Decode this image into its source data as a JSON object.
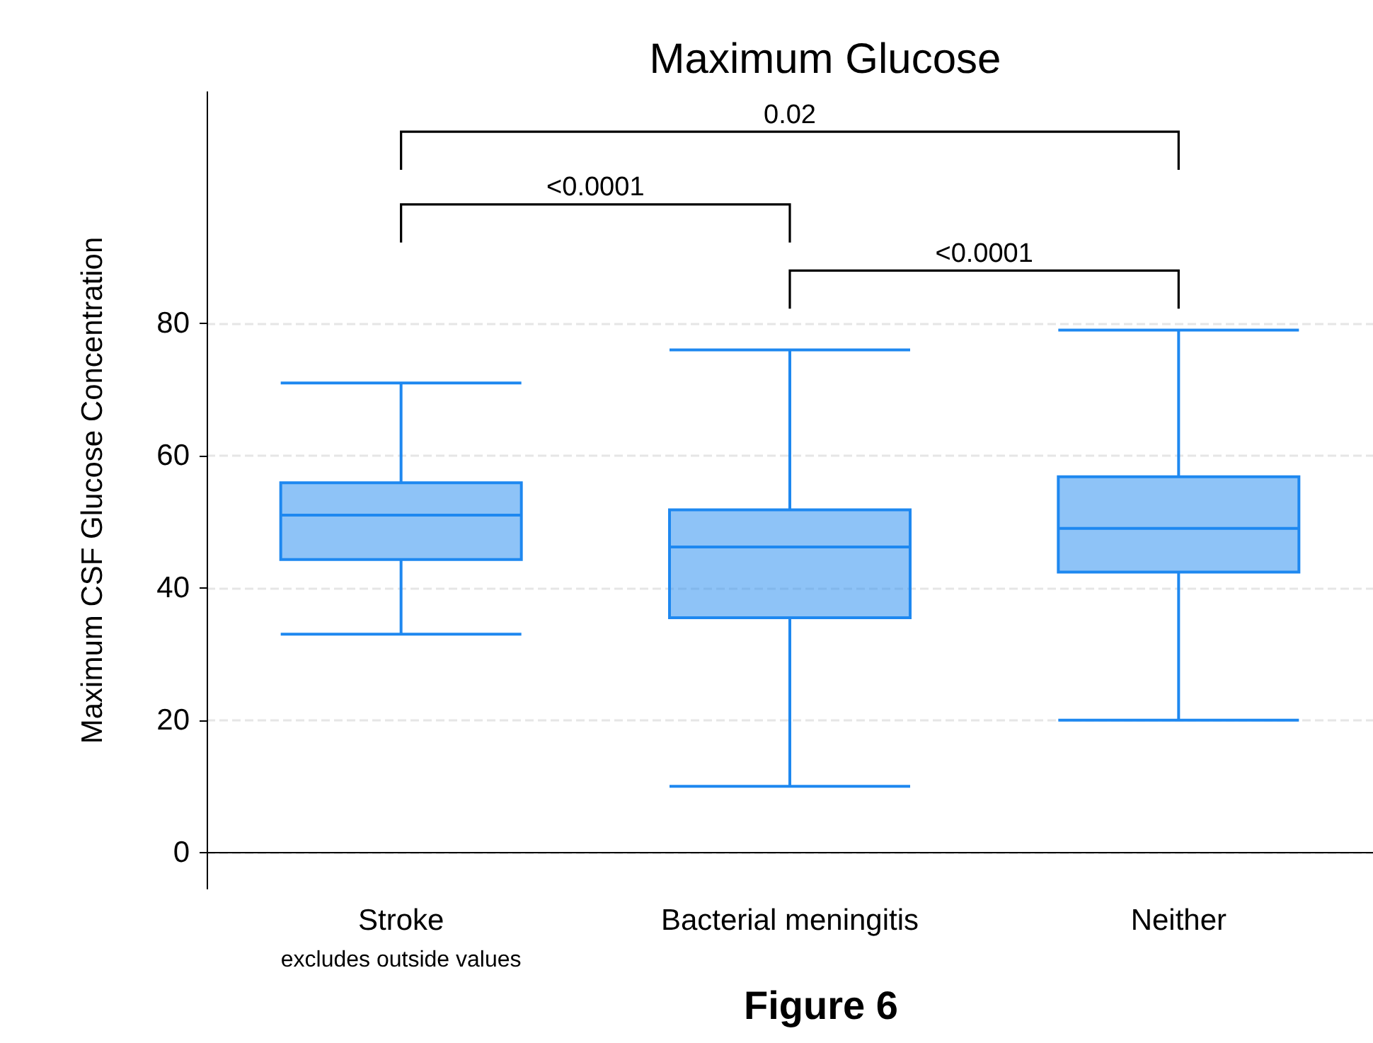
{
  "chart_data": {
    "type": "box",
    "title": "Maximum Glucose",
    "ylabel": "Maximum CSF Glucose Concentration",
    "categories": [
      "Stroke",
      "Bacterial meningitis",
      "Neither"
    ],
    "color": "#1e88f0",
    "boxes": [
      {
        "low": 33,
        "q1": 44.3,
        "median": 51,
        "q3": 55.9,
        "high": 71
      },
      {
        "low": 10,
        "q1": 35.5,
        "median": 46.2,
        "q3": 51.8,
        "high": 76
      },
      {
        "low": 20,
        "q1": 42.4,
        "median": 49,
        "q3": 56.8,
        "high": 79
      }
    ],
    "ylim": [
      -5.5,
      115
    ],
    "yticks": [
      0,
      20,
      40,
      60,
      80
    ],
    "grid": "y",
    "annotations": [
      "<0.0001",
      "<0.0001",
      "0.02",
      "excludes outside values",
      "Figure 6"
    ]
  }
}
